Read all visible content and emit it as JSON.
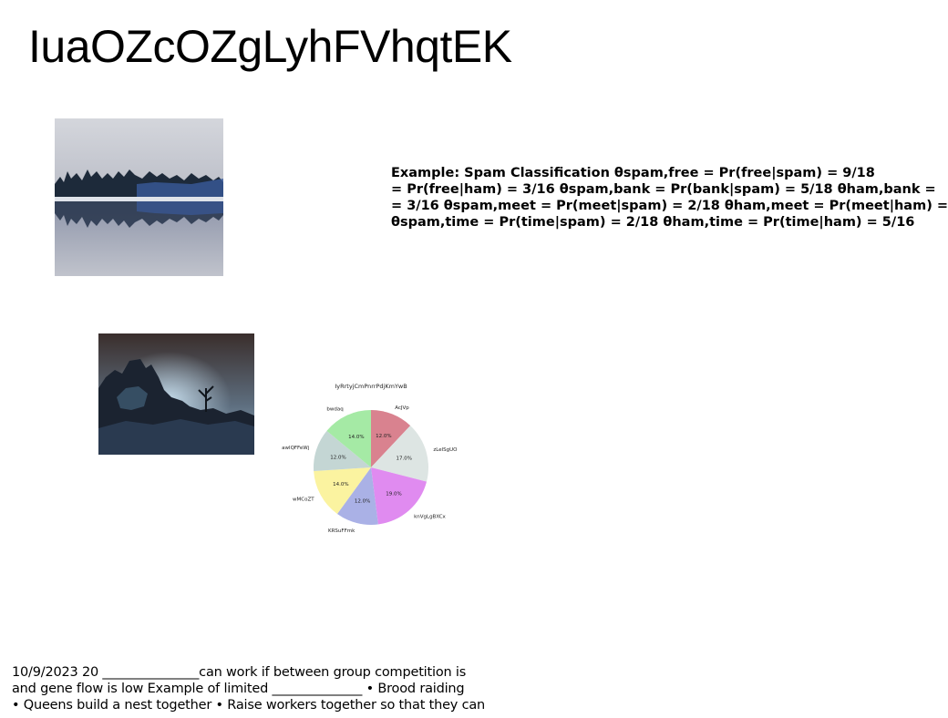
{
  "page": {
    "title": "IuaOZcOZgLyhFVhqtEK"
  },
  "example_text": {
    "lines": [
      "Example: Spam Classification θspam,free = Pr(free|spam) = 9/18",
      "= Pr(free|ham) = 3/16 θspam,bank = Pr(bank|spam) = 5/18 θham,bank =",
      "= 3/16 θspam,meet = Pr(meet|spam) = 2/18 θham,meet = Pr(meet|ham) =",
      "θspam,time = Pr(time|spam) = 2/18 θham,time = Pr(time|ham) = 5/16"
    ]
  },
  "footer": {
    "lines": [
      "10/9/2023 20 _______________can work if between group competition is",
      "and gene flow is low Example of limited ______________ • Brood raiding",
      "• Queens build a nest together • Raise workers together so that they can"
    ]
  },
  "chart_data": {
    "type": "pie",
    "title": "IyRrtyjCmPnrrPdjKmYwB",
    "labels": [
      "AcJVp",
      "zLelSgUO",
      "knVgLgBXCx",
      "KRSuFFmk",
      "wMCoZT",
      "awlQFFeWj",
      "bwdaq"
    ],
    "values": [
      12.0,
      17.0,
      19.0,
      12.0,
      14.0,
      12.0,
      14.0
    ],
    "value_labels": [
      "12.0%",
      "17.0%",
      "19.0%",
      "12.0%",
      "14.0%",
      "12.0%",
      "14.0%"
    ],
    "colors": [
      "#d9828f",
      "#dde5e3",
      "#e08bf0",
      "#aab1e6",
      "#fbf3a0",
      "#c4d6d4",
      "#a5eaa5"
    ],
    "start_angle_deg": 90,
    "direction": "clockwise"
  }
}
